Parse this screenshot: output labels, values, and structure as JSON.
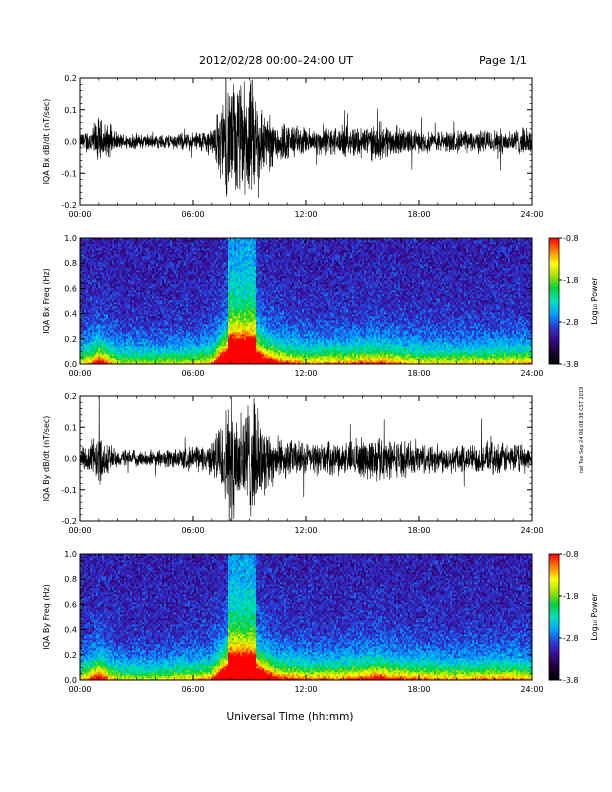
{
  "header": {
    "title": "2012/02/28  00:00–24:00 UT",
    "page": "Page 1/1"
  },
  "footer": {
    "xlabel": "Universal Time (hh:mm)",
    "side_note": "nel Tue Sep 24 06:08:38 CST 2019"
  },
  "colors": {
    "background": "#ffffff",
    "trace": "#000000",
    "colormap": [
      "#000000",
      "#1a0033",
      "#3a0a8c",
      "#2a3cd6",
      "#00a0ff",
      "#00e0c0",
      "#00d040",
      "#a0e000",
      "#ffff00",
      "#ff8000",
      "#ff0000"
    ]
  },
  "chart_data": [
    {
      "type": "line",
      "description_id": "bx-dbdt",
      "ylabel": "IQA Bx dB/dt (nT/sec)",
      "xlim": [
        0,
        24
      ],
      "ylim": [
        -0.2,
        0.2
      ],
      "xticks": [
        "00:00",
        "06:00",
        "12:00",
        "18:00",
        "24:00"
      ],
      "yticks": [
        "0.2",
        "0.1",
        "0.0",
        "-0.1",
        "-0.2"
      ],
      "ytick_values": [
        0.2,
        0.1,
        0.0,
        -0.1,
        -0.2
      ],
      "series": [
        {
          "envelope_hours": [
            0,
            0.5,
            1.0,
            1.5,
            2.0,
            3.0,
            4.0,
            5.0,
            6.0,
            7.0,
            7.9,
            8.1,
            9.2,
            9.8,
            10.5,
            12.0,
            14.0,
            16.0,
            16.5,
            18.0,
            20.0,
            22.0,
            24.0
          ],
          "envelope_amplitude": [
            0.03,
            0.05,
            0.09,
            0.06,
            0.03,
            0.03,
            0.025,
            0.03,
            0.035,
            0.05,
            0.22,
            0.22,
            0.22,
            0.12,
            0.08,
            0.05,
            0.055,
            0.07,
            0.06,
            0.04,
            0.04,
            0.045,
            0.05
          ]
        }
      ]
    },
    {
      "type": "heatmap",
      "description_id": "bx-spec",
      "ylabel": "IQA Bx Freq (Hz)",
      "xlim": [
        0,
        24
      ],
      "ylim": [
        0,
        1.0
      ],
      "xticks": [
        "00:00",
        "06:00",
        "12:00",
        "18:00",
        "24:00"
      ],
      "yticks": [
        "1.0",
        "0.8",
        "0.6",
        "0.4",
        "0.2",
        "0.0"
      ],
      "ytick_values": [
        1.0,
        0.8,
        0.6,
        0.4,
        0.2,
        0.0
      ],
      "colorbar": {
        "label": "Log₁₀ Power",
        "ticks": [
          "-0.8",
          "-1.8",
          "-2.8",
          "-3.8"
        ],
        "tick_values": [
          -0.8,
          -1.8,
          -2.8,
          -3.8
        ],
        "range": [
          -3.8,
          -0.8
        ]
      }
    },
    {
      "type": "line",
      "description_id": "by-dbdt",
      "ylabel": "IQA By dB/dt (nT/sec)",
      "xlim": [
        0,
        24
      ],
      "ylim": [
        -0.2,
        0.2
      ],
      "xticks": [
        "00:00",
        "06:00",
        "12:00",
        "18:00",
        "24:00"
      ],
      "yticks": [
        "0.2",
        "0.1",
        "0.0",
        "-0.1",
        "-0.2"
      ],
      "ytick_values": [
        0.2,
        0.1,
        0.0,
        -0.1,
        -0.2
      ],
      "series": [
        {
          "envelope_hours": [
            0,
            0.5,
            1.0,
            1.5,
            2.0,
            3.0,
            4.0,
            5.0,
            6.0,
            7.0,
            7.9,
            8.1,
            9.2,
            9.8,
            10.5,
            12.0,
            14.0,
            16.0,
            16.5,
            18.0,
            20.0,
            22.0,
            24.0
          ],
          "envelope_amplitude": [
            0.04,
            0.06,
            0.1,
            0.06,
            0.035,
            0.03,
            0.03,
            0.04,
            0.045,
            0.06,
            0.22,
            0.22,
            0.22,
            0.13,
            0.08,
            0.06,
            0.06,
            0.09,
            0.07,
            0.06,
            0.05,
            0.06,
            0.05
          ]
        }
      ]
    },
    {
      "type": "heatmap",
      "description_id": "by-spec",
      "ylabel": "IQA By Freq (Hz)",
      "xlim": [
        0,
        24
      ],
      "ylim": [
        0,
        1.0
      ],
      "xticks": [
        "00:00",
        "06:00",
        "12:00",
        "18:00",
        "24:00"
      ],
      "yticks": [
        "1.0",
        "0.8",
        "0.6",
        "0.4",
        "0.2",
        "0.0"
      ],
      "ytick_values": [
        1.0,
        0.8,
        0.6,
        0.4,
        0.2,
        0.0
      ],
      "colorbar": {
        "label": "Log₁₀ Power",
        "ticks": [
          "-0.8",
          "-1.8",
          "-2.8",
          "-3.8"
        ],
        "tick_values": [
          -0.8,
          -1.8,
          -2.8,
          -3.8
        ],
        "range": [
          -3.8,
          -0.8
        ]
      }
    }
  ]
}
